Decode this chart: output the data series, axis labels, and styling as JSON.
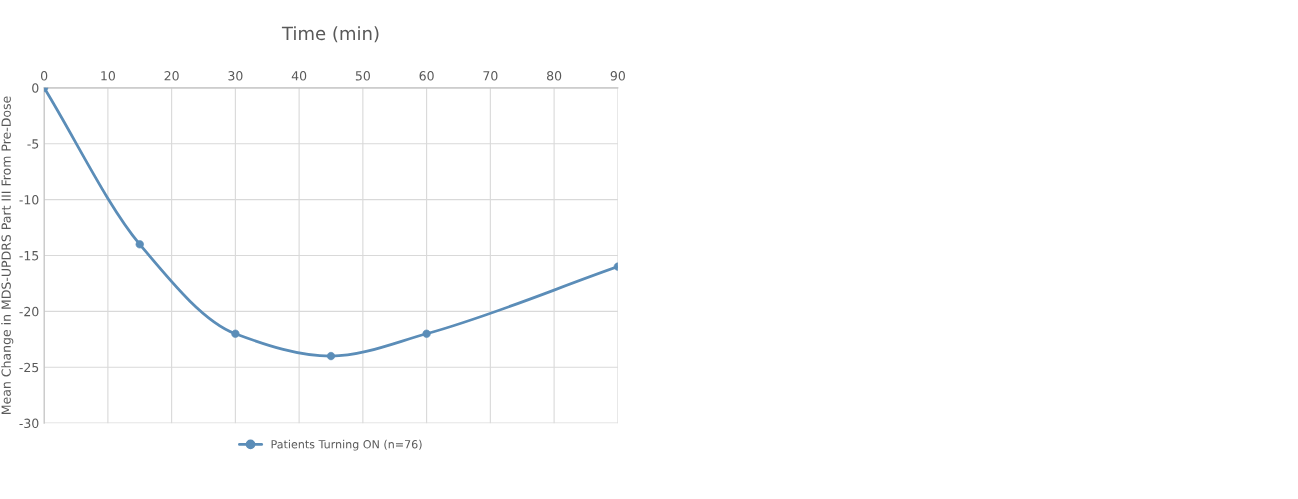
{
  "chart_data": {
    "type": "line",
    "xlabel": "Time (min)",
    "ylabel": "Mean Change in MDS-UPDRS Part III From Pre-Dose",
    "x": [
      0,
      15,
      30,
      45,
      60,
      90
    ],
    "series": [
      {
        "name": "Patients Turning ON (n=76)",
        "color": "#5b8db8",
        "values": [
          0,
          -14,
          -22,
          -24,
          -22,
          -16
        ]
      }
    ],
    "xlim": [
      0,
      90
    ],
    "xticks": [
      0,
      10,
      20,
      30,
      40,
      50,
      60,
      70,
      80,
      90
    ],
    "ylim": [
      -30,
      0
    ],
    "yticks": [
      -30,
      -25,
      -20,
      -15,
      -10,
      -5,
      0
    ],
    "grid": true,
    "legend": "bottom",
    "marker": "circle",
    "line_style": "solid"
  }
}
